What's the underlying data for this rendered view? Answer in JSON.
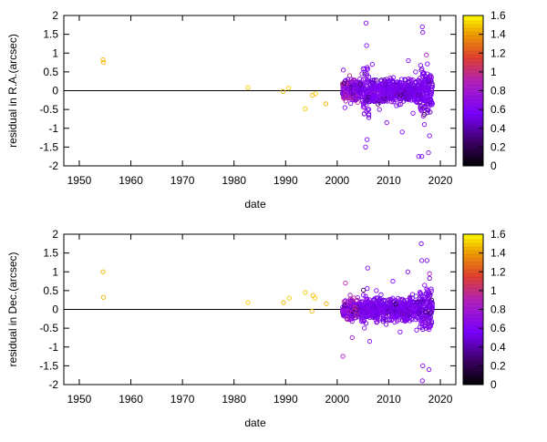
{
  "chart_data": [
    {
      "type": "scatter",
      "xlabel": "date",
      "ylabel": "residual in R.A.(arcsec)",
      "xlim": [
        1947,
        2023
      ],
      "ylim": [
        -2,
        2
      ],
      "xticks": [
        "1950",
        "1960",
        "1970",
        "1980",
        "1990",
        "2000",
        "2010",
        "2020"
      ],
      "yticks": [
        "-2",
        "-1.5",
        "-1",
        "-0.5",
        "0",
        "0.5",
        "1",
        "1.5",
        "2"
      ],
      "zero_line": true,
      "colorbar": {
        "min": 0,
        "max": 1.6,
        "ticks": [
          "0",
          "0.2",
          "0.4",
          "0.6",
          "0.8",
          "1",
          "1.2",
          "1.4",
          "1.6"
        ],
        "colormap": "gnuplot"
      },
      "points": [
        [
          1954.6,
          0.82,
          1.45
        ],
        [
          1954.7,
          0.75,
          1.45
        ],
        [
          1982.7,
          0.08,
          1.5
        ],
        [
          1990.6,
          0.07,
          1.5
        ],
        [
          1989.5,
          -0.02,
          1.45
        ],
        [
          1993.8,
          -0.48,
          1.5
        ],
        [
          1995.2,
          -0.12,
          1.45
        ],
        [
          1995.8,
          -0.08,
          1.5
        ],
        [
          1997.8,
          -0.35,
          1.45
        ],
        [
          2002.4,
          0.4,
          1.0
        ],
        [
          2002.8,
          0.2,
          0.9
        ],
        [
          2003.6,
          -0.1,
          0.85
        ],
        [
          2002.1,
          -0.2,
          0.75
        ],
        [
          2005.6,
          1.8,
          0.62
        ],
        [
          2005.7,
          1.2,
          0.62
        ],
        [
          2005.5,
          -1.5,
          0.6
        ],
        [
          2005.8,
          -1.3,
          0.58
        ],
        [
          2006.8,
          0.7,
          0.6
        ],
        [
          2008.2,
          -0.5,
          0.6
        ],
        [
          2009.6,
          -0.85,
          0.62
        ],
        [
          2010.9,
          0.35,
          0.65
        ],
        [
          2012.6,
          -1.1,
          0.6
        ],
        [
          2013.8,
          0.8,
          0.6
        ],
        [
          2014.7,
          -0.6,
          0.62
        ],
        [
          2015.8,
          -1.75,
          0.62
        ],
        [
          2016.4,
          -1.75,
          0.6
        ],
        [
          2016.5,
          1.7,
          0.62
        ],
        [
          2016.6,
          1.55,
          0.6
        ],
        [
          2017.3,
          0.95,
          0.85
        ],
        [
          2017.7,
          -1.65,
          0.62
        ],
        [
          2017.9,
          -1.2,
          0.6
        ],
        [
          2018.1,
          0.4,
          0.75
        ],
        [
          2001.2,
          0.55,
          0.62
        ],
        [
          2001.5,
          -0.45,
          0.62
        ],
        [
          2004.8,
          0.45,
          0.62
        ],
        [
          2007.5,
          -0.25,
          0.62
        ],
        [
          2011.5,
          -0.4,
          0.62
        ],
        [
          2013.1,
          0.3,
          0.62
        ],
        [
          2015.2,
          0.5,
          0.65
        ],
        [
          2016.9,
          -0.9,
          0.62
        ]
      ]
    },
    {
      "type": "scatter",
      "xlabel": "date",
      "ylabel": "residual in Dec.(arcsec)",
      "xlim": [
        1947,
        2023
      ],
      "ylim": [
        -2,
        2
      ],
      "xticks": [
        "1950",
        "1960",
        "1970",
        "1980",
        "1990",
        "2000",
        "2010",
        "2020"
      ],
      "yticks": [
        "-2",
        "-1.5",
        "-1",
        "-0.5",
        "0",
        "0.5",
        "1",
        "1.5",
        "2"
      ],
      "zero_line": true,
      "colorbar": {
        "min": 0,
        "max": 1.6,
        "ticks": [
          "0",
          "0.2",
          "0.4",
          "0.6",
          "0.8",
          "1",
          "1.2",
          "1.4",
          "1.6"
        ],
        "colormap": "gnuplot"
      },
      "points": [
        [
          1954.6,
          1.0,
          1.45
        ],
        [
          1954.7,
          0.32,
          1.45
        ],
        [
          1982.7,
          0.18,
          1.5
        ],
        [
          1989.6,
          0.18,
          1.45
        ],
        [
          1990.7,
          0.3,
          1.5
        ],
        [
          1993.8,
          0.45,
          1.5
        ],
        [
          1995.3,
          0.37,
          1.45
        ],
        [
          1995.7,
          0.3,
          1.5
        ],
        [
          1995.1,
          -0.05,
          1.45
        ],
        [
          1997.9,
          0.15,
          1.45
        ],
        [
          2001.1,
          -1.25,
          0.85
        ],
        [
          2001.6,
          0.7,
          0.9
        ],
        [
          2002.5,
          0.38,
          0.85
        ],
        [
          2002.9,
          -0.75,
          0.8
        ],
        [
          2005.9,
          1.1,
          0.62
        ],
        [
          2006.3,
          -0.85,
          0.62
        ],
        [
          2007.6,
          0.5,
          0.62
        ],
        [
          2009.5,
          -0.4,
          0.62
        ],
        [
          2010.8,
          0.75,
          0.62
        ],
        [
          2012.2,
          -0.6,
          0.62
        ],
        [
          2013.7,
          1.0,
          0.62
        ],
        [
          2014.6,
          0.4,
          0.62
        ],
        [
          2016.3,
          1.75,
          0.62
        ],
        [
          2016.4,
          1.3,
          0.62
        ],
        [
          2016.5,
          -1.9,
          0.6
        ],
        [
          2016.6,
          -1.5,
          0.62
        ],
        [
          2017.4,
          1.3,
          0.6
        ],
        [
          2017.8,
          -1.6,
          0.62
        ],
        [
          2017.9,
          0.95,
          0.85
        ],
        [
          2018.1,
          -0.45,
          0.62
        ],
        [
          2004.9,
          -0.3,
          0.62
        ],
        [
          2008.3,
          0.25,
          0.62
        ],
        [
          2011.6,
          0.2,
          0.62
        ],
        [
          2015.4,
          -0.55,
          0.62
        ]
      ]
    }
  ]
}
